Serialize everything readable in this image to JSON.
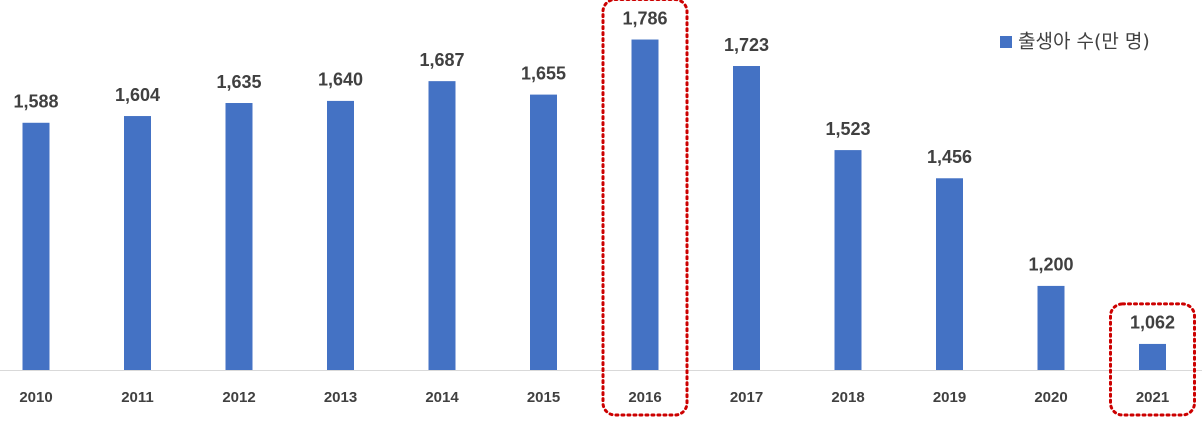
{
  "chart_data": {
    "type": "bar",
    "categories": [
      "2010",
      "2011",
      "2012",
      "2013",
      "2014",
      "2015",
      "2016",
      "2017",
      "2018",
      "2019",
      "2020",
      "2021"
    ],
    "series": [
      {
        "name": "출생아 수(만 명)",
        "color": "#4472c4",
        "values": [
          1588,
          1604,
          1635,
          1640,
          1687,
          1655,
          1786,
          1723,
          1523,
          1456,
          1200,
          1062
        ],
        "value_labels": [
          "1,588",
          "1,604",
          "1,635",
          "1,640",
          "1,687",
          "1,655",
          "1,786",
          "1,723",
          "1,523",
          "1,456",
          "1,200",
          "1,062"
        ]
      }
    ],
    "ylim": [
      1000,
      1880
    ],
    "legend": "top-right",
    "highlighted": [
      6,
      11
    ],
    "highlight_color": "#cc0000"
  }
}
